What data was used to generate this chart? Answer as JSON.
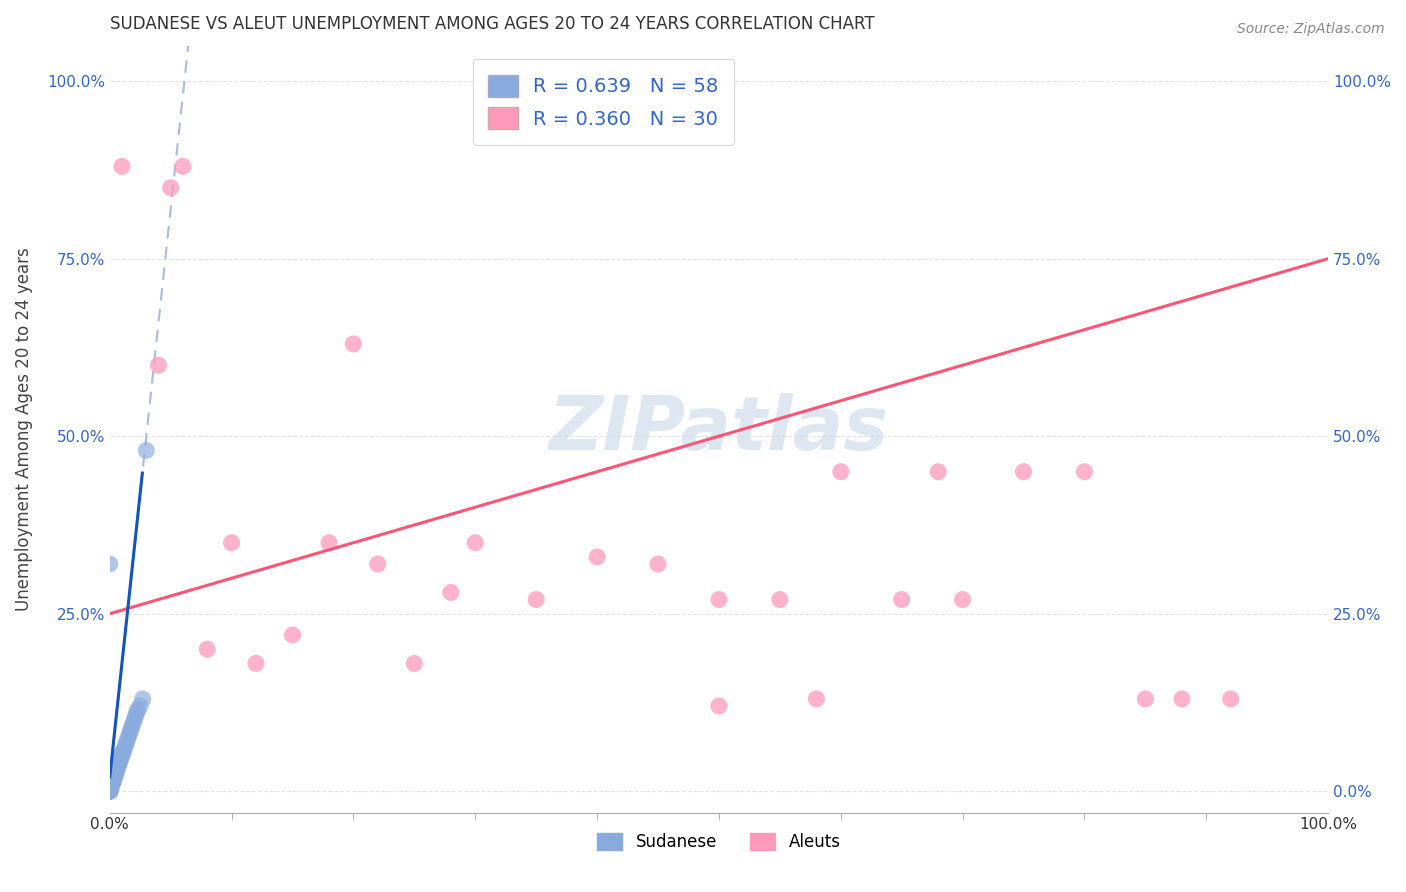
{
  "title": "SUDANESE VS ALEUT UNEMPLOYMENT AMONG AGES 20 TO 24 YEARS CORRELATION CHART",
  "source": "Source: ZipAtlas.com",
  "ylabel": "Unemployment Among Ages 20 to 24 years",
  "legend_blue_r": "R = 0.639",
  "legend_blue_n": "N = 58",
  "legend_pink_r": "R = 0.360",
  "legend_pink_n": "N = 30",
  "blue_scatter_color": "#88AADD",
  "pink_scatter_color": "#FF99BB",
  "blue_line_color": "#1155BB",
  "pink_line_color": "#FF5577",
  "blue_dashed_color": "#AABBDD",
  "watermark_color": "#C8D8E8",
  "background_color": "#FFFFFF",
  "grid_color": "#DDDDDD",
  "sudanese_x": [
    0.0,
    0.0,
    0.0,
    0.0,
    0.0,
    0.0,
    0.0,
    0.0,
    0.0,
    0.0,
    0.001,
    0.001,
    0.001,
    0.002,
    0.002,
    0.002,
    0.003,
    0.003,
    0.003,
    0.004,
    0.004,
    0.004,
    0.005,
    0.005,
    0.005,
    0.006,
    0.006,
    0.007,
    0.007,
    0.008,
    0.008,
    0.009,
    0.009,
    0.01,
    0.01,
    0.011,
    0.012,
    0.013,
    0.014,
    0.015,
    0.016,
    0.017,
    0.018,
    0.019,
    0.02,
    0.021,
    0.022,
    0.023,
    0.025,
    0.027,
    0.0,
    0.001,
    0.002,
    0.003,
    0.004,
    0.005,
    0.03,
    0.0
  ],
  "sudanese_y": [
    0.0,
    0.0,
    0.0,
    0.005,
    0.005,
    0.01,
    0.01,
    0.01,
    0.015,
    0.02,
    0.005,
    0.01,
    0.015,
    0.01,
    0.015,
    0.02,
    0.015,
    0.02,
    0.025,
    0.02,
    0.025,
    0.03,
    0.025,
    0.03,
    0.035,
    0.03,
    0.035,
    0.035,
    0.04,
    0.04,
    0.045,
    0.045,
    0.05,
    0.05,
    0.055,
    0.055,
    0.06,
    0.065,
    0.07,
    0.075,
    0.08,
    0.085,
    0.09,
    0.095,
    0.1,
    0.105,
    0.11,
    0.115,
    0.12,
    0.13,
    0.0,
    0.005,
    0.01,
    0.015,
    0.02,
    0.025,
    0.48,
    0.32
  ],
  "aleut_x": [
    0.01,
    0.04,
    0.05,
    0.06,
    0.08,
    0.1,
    0.12,
    0.15,
    0.18,
    0.2,
    0.22,
    0.25,
    0.28,
    0.3,
    0.35,
    0.4,
    0.45,
    0.5,
    0.5,
    0.55,
    0.58,
    0.6,
    0.65,
    0.68,
    0.7,
    0.75,
    0.8,
    0.85,
    0.88,
    0.92
  ],
  "aleut_y": [
    0.88,
    0.6,
    0.85,
    0.88,
    0.2,
    0.35,
    0.18,
    0.22,
    0.35,
    0.63,
    0.32,
    0.18,
    0.28,
    0.35,
    0.27,
    0.33,
    0.32,
    0.12,
    0.27,
    0.27,
    0.13,
    0.45,
    0.27,
    0.45,
    0.27,
    0.45,
    0.45,
    0.13,
    0.13,
    0.13
  ],
  "xlim": [
    0.0,
    1.0
  ],
  "ylim": [
    -0.03,
    1.05
  ],
  "xticks": [
    0.0,
    1.0
  ],
  "yticks": [
    0.0,
    0.25,
    0.5,
    0.75,
    1.0
  ],
  "xtick_labels": [
    "0.0%",
    "100.0%"
  ],
  "ytick_labels_left": [
    "",
    "25.0%",
    "50.0%",
    "75.0%",
    "100.0%"
  ],
  "ytick_labels_right": [
    "0.0%",
    "25.0%",
    "50.0%",
    "75.0%",
    "100.0%"
  ],
  "x_minor_ticks": [
    0.1,
    0.2,
    0.3,
    0.4,
    0.5,
    0.6,
    0.7,
    0.8,
    0.9
  ]
}
